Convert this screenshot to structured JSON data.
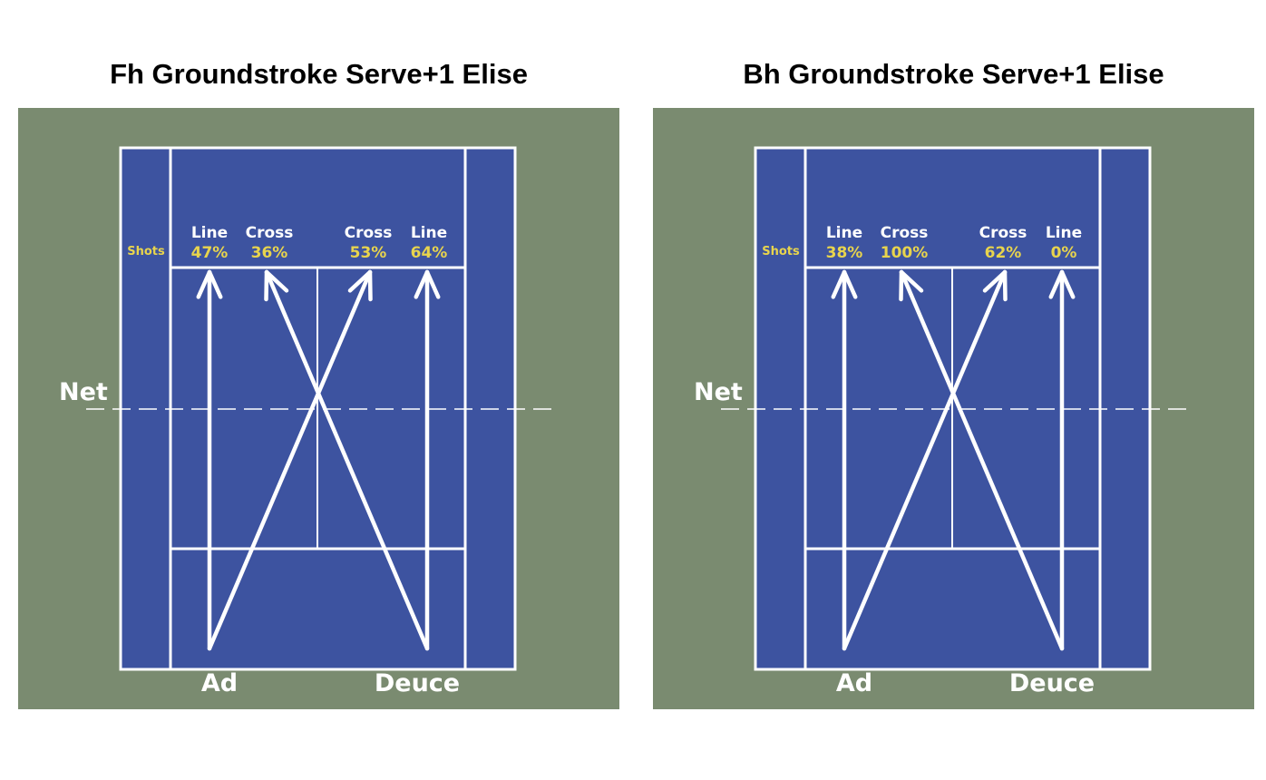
{
  "colors": {
    "surround": "#7a8b70",
    "court": "#3d53a0",
    "lines": "#ffffff",
    "percent_text": "#e8d44d"
  },
  "panels": [
    {
      "title": "Fh Groundstroke Serve+1 Elise",
      "shots_label": "Shots",
      "net_label": "Net",
      "side_labels": {
        "ad": "Ad",
        "deuce": "Deuce"
      },
      "zones": [
        {
          "label": "Line",
          "percent": "47%"
        },
        {
          "label": "Cross",
          "percent": "36%"
        },
        {
          "label": "Cross",
          "percent": "53%"
        },
        {
          "label": "Line",
          "percent": "64%"
        }
      ]
    },
    {
      "title": "Bh Groundstroke Serve+1 Elise",
      "shots_label": "Shots",
      "net_label": "Net",
      "side_labels": {
        "ad": "Ad",
        "deuce": "Deuce"
      },
      "zones": [
        {
          "label": "Line",
          "percent": "38%"
        },
        {
          "label": "Cross",
          "percent": "100%"
        },
        {
          "label": "Cross",
          "percent": "62%"
        },
        {
          "label": "Line",
          "percent": "0%"
        }
      ]
    }
  ]
}
